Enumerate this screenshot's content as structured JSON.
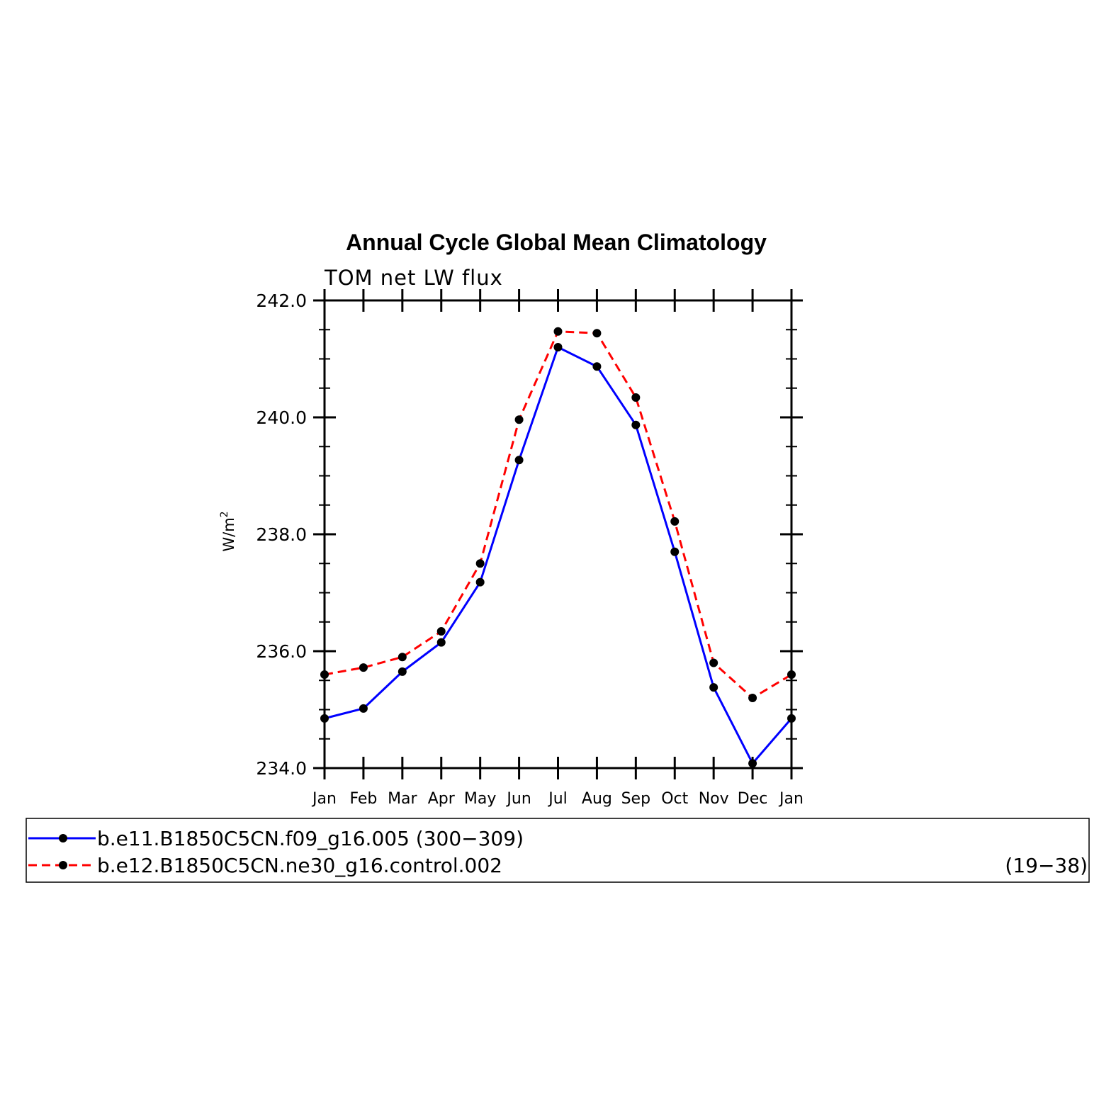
{
  "chart_data": {
    "type": "line",
    "title": "Annual Cycle Global Mean Climatology",
    "subtitle": "TOM net LW flux",
    "ylabel": "W/m",
    "ylabel_superscript": "2",
    "categories": [
      "Jan",
      "Feb",
      "Mar",
      "Apr",
      "May",
      "Jun",
      "Jul",
      "Aug",
      "Sep",
      "Oct",
      "Nov",
      "Dec",
      "Jan"
    ],
    "ylim": [
      234.0,
      242.0
    ],
    "yticks": [
      234.0,
      236.0,
      238.0,
      240.0,
      242.0
    ],
    "ytick_labels": [
      "234.0",
      "236.0",
      "238.0",
      "240.0",
      "242.0"
    ],
    "yminor_step": 0.5,
    "series": [
      {
        "name": "b.e11.B1850C5CN.f09_g16.005 (300−309)",
        "period": "",
        "color": "#0000ff",
        "dash": "solid",
        "values": [
          234.85,
          235.02,
          235.65,
          236.15,
          237.18,
          239.27,
          241.2,
          240.87,
          239.87,
          237.7,
          235.38,
          234.08,
          234.85
        ]
      },
      {
        "name": "b.e12.B1850C5CN.ne30_g16.control.002",
        "period": "(19−38)",
        "color": "#ff0000",
        "dash": "dashed",
        "values": [
          235.6,
          235.72,
          235.9,
          236.34,
          237.5,
          239.96,
          241.47,
          241.44,
          240.34,
          238.22,
          235.8,
          235.2,
          235.6
        ]
      }
    ],
    "marker_color": "#000000",
    "legend_position": "bottom"
  }
}
